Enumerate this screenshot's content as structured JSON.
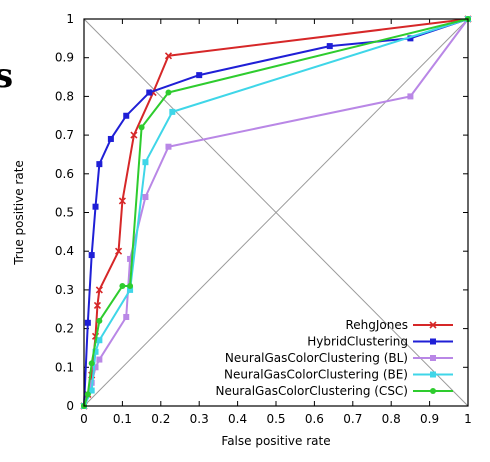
{
  "cropped_text": "s",
  "chart_data": {
    "type": "line",
    "title": "",
    "xlabel": "False positive rate",
    "ylabel": "True positive rate",
    "xlim": [
      0,
      1
    ],
    "ylim": [
      0,
      1
    ],
    "xticks": [
      "0",
      "0.1",
      "0.2",
      "0.3",
      "0.4",
      "0.5",
      "0.6",
      "0.7",
      "0.8",
      "0.9",
      "1"
    ],
    "yticks": [
      "0",
      "0.1",
      "0.2",
      "0.3",
      "0.4",
      "0.5",
      "0.6",
      "0.7",
      "0.8",
      "0.9",
      "1"
    ],
    "grid": false,
    "legend_position": "bottom-right",
    "reference_lines": "diagonals",
    "series": [
      {
        "name": "RehgJones",
        "color": "#d62728",
        "marker": "x",
        "points": [
          [
            0,
            0
          ],
          [
            0.01,
            0.03
          ],
          [
            0.02,
            0.08
          ],
          [
            0.03,
            0.18
          ],
          [
            0.035,
            0.26
          ],
          [
            0.04,
            0.3
          ],
          [
            0.09,
            0.4
          ],
          [
            0.1,
            0.53
          ],
          [
            0.13,
            0.7
          ],
          [
            0.18,
            0.81
          ],
          [
            0.22,
            0.905
          ],
          [
            1,
            1
          ]
        ]
      },
      {
        "name": "HybridClustering",
        "color": "#1f1fd6",
        "marker": "square",
        "points": [
          [
            0,
            0
          ],
          [
            0.01,
            0.215
          ],
          [
            0.02,
            0.39
          ],
          [
            0.03,
            0.515
          ],
          [
            0.04,
            0.625
          ],
          [
            0.07,
            0.69
          ],
          [
            0.11,
            0.75
          ],
          [
            0.17,
            0.81
          ],
          [
            0.3,
            0.855
          ],
          [
            0.64,
            0.93
          ],
          [
            0.85,
            0.95
          ],
          [
            1,
            1
          ]
        ]
      },
      {
        "name": "NeuralGasColorClustering (BL)",
        "color": "#b987e6",
        "marker": "square",
        "points": [
          [
            0,
            0
          ],
          [
            0.02,
            0.06
          ],
          [
            0.03,
            0.1
          ],
          [
            0.04,
            0.12
          ],
          [
            0.11,
            0.23
          ],
          [
            0.12,
            0.38
          ],
          [
            0.16,
            0.54
          ],
          [
            0.22,
            0.67
          ],
          [
            0.85,
            0.8
          ],
          [
            1,
            1
          ]
        ]
      },
      {
        "name": "NeuralGasColorClustering (BE)",
        "color": "#3fd6e8",
        "marker": "square",
        "points": [
          [
            0,
            0
          ],
          [
            0.02,
            0.04
          ],
          [
            0.03,
            0.14
          ],
          [
            0.04,
            0.17
          ],
          [
            0.12,
            0.3
          ],
          [
            0.16,
            0.63
          ],
          [
            0.23,
            0.76
          ],
          [
            1,
            1
          ]
        ]
      },
      {
        "name": "NeuralGasColorClustering (CSC)",
        "color": "#2ecc2e",
        "marker": "circle",
        "points": [
          [
            0,
            0
          ],
          [
            0.01,
            0.03
          ],
          [
            0.02,
            0.11
          ],
          [
            0.04,
            0.22
          ],
          [
            0.1,
            0.31
          ],
          [
            0.12,
            0.31
          ],
          [
            0.15,
            0.72
          ],
          [
            0.22,
            0.81
          ],
          [
            1,
            1
          ]
        ]
      }
    ]
  }
}
